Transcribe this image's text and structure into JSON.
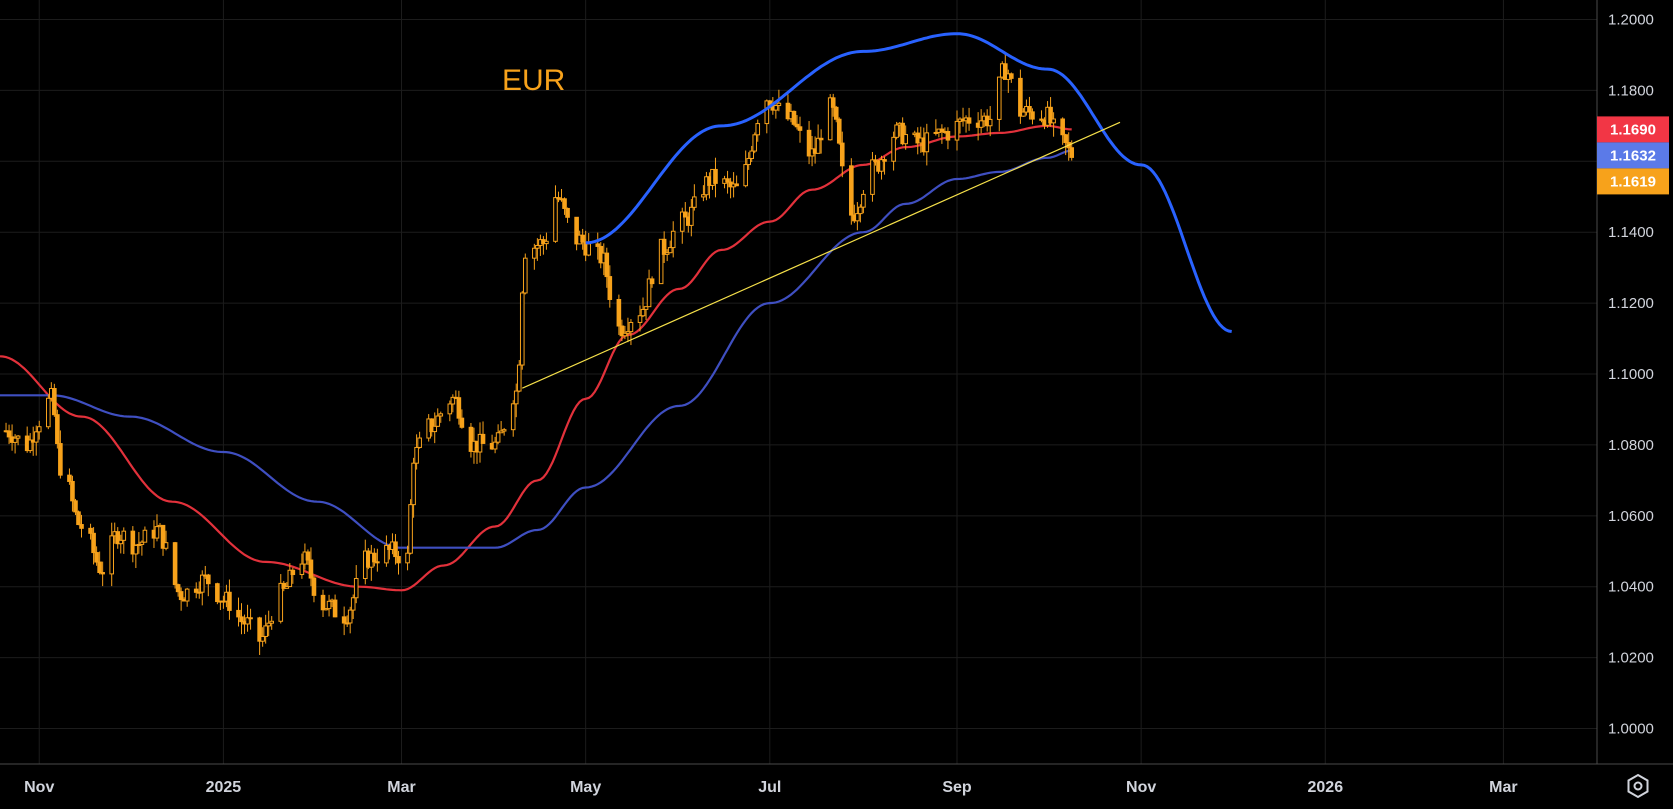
{
  "chart_data": {
    "type": "line",
    "title": "EUR",
    "y_ticks": [
      "1.2000",
      "1.1800",
      "1.1600",
      "1.1400",
      "1.1200",
      "1.1000",
      "1.0800",
      "1.0600",
      "1.0400",
      "1.0200",
      "1.0000"
    ],
    "ylim": [
      0.99,
      1.2055
    ],
    "y_scale": "linear",
    "grid": true,
    "x_ticks": [
      {
        "label": "Nov",
        "date": "2024-11-01"
      },
      {
        "label": "2025",
        "date": "2025-01-01"
      },
      {
        "label": "Mar",
        "date": "2025-03-01"
      },
      {
        "label": "May",
        "date": "2025-05-01"
      },
      {
        "label": "Jul",
        "date": "2025-07-01"
      },
      {
        "label": "Sep",
        "date": "2025-09-01"
      },
      {
        "label": "Nov",
        "date": "2025-11-01"
      },
      {
        "label": "2026",
        "date": "2026-01-01"
      },
      {
        "label": "Mar",
        "date": "2026-03-01"
      }
    ],
    "xlim": [
      "2024-10-19",
      "2026-04-01"
    ],
    "price_series": {
      "color": "#f7a21b",
      "style": "candlestick",
      "anchors": [
        [
          "2024-10-21",
          1.084
        ],
        [
          "2024-10-28",
          1.08
        ],
        [
          "2024-11-01",
          1.087
        ],
        [
          "2024-11-05",
          1.093
        ],
        [
          "2024-11-08",
          1.074
        ],
        [
          "2024-11-15",
          1.057
        ],
        [
          "2024-11-22",
          1.045
        ],
        [
          "2024-11-27",
          1.055
        ],
        [
          "2024-12-03",
          1.052
        ],
        [
          "2024-12-10",
          1.056
        ],
        [
          "2024-12-18",
          1.038
        ],
        [
          "2024-12-26",
          1.042
        ],
        [
          "2025-01-02",
          1.036
        ],
        [
          "2025-01-08",
          1.03
        ],
        [
          "2025-01-13",
          1.025
        ],
        [
          "2025-01-20",
          1.038
        ],
        [
          "2025-01-27",
          1.048
        ],
        [
          "2025-02-03",
          1.035
        ],
        [
          "2025-02-10",
          1.032
        ],
        [
          "2025-02-18",
          1.048
        ],
        [
          "2025-02-25",
          1.05
        ],
        [
          "2025-03-03",
          1.048
        ],
        [
          "2025-03-05",
          1.077
        ],
        [
          "2025-03-10",
          1.085
        ],
        [
          "2025-03-18",
          1.093
        ],
        [
          "2025-03-25",
          1.08
        ],
        [
          "2025-04-01",
          1.08
        ],
        [
          "2025-04-08",
          1.095
        ],
        [
          "2025-04-11",
          1.135
        ],
        [
          "2025-04-17",
          1.137
        ],
        [
          "2025-04-21",
          1.15
        ],
        [
          "2025-04-28",
          1.138
        ],
        [
          "2025-05-06",
          1.133
        ],
        [
          "2025-05-12",
          1.113
        ],
        [
          "2025-05-19",
          1.118
        ],
        [
          "2025-05-26",
          1.135
        ],
        [
          "2025-06-02",
          1.143
        ],
        [
          "2025-06-12",
          1.155
        ],
        [
          "2025-06-20",
          1.152
        ],
        [
          "2025-06-30",
          1.178
        ],
        [
          "2025-07-07",
          1.172
        ],
        [
          "2025-07-15",
          1.162
        ],
        [
          "2025-07-21",
          1.175
        ],
        [
          "2025-07-28",
          1.145
        ],
        [
          "2025-08-04",
          1.158
        ],
        [
          "2025-08-12",
          1.168
        ],
        [
          "2025-08-20",
          1.165
        ],
        [
          "2025-08-28",
          1.168
        ],
        [
          "2025-09-05",
          1.172
        ],
        [
          "2025-09-12",
          1.172
        ],
        [
          "2025-09-17",
          1.186
        ],
        [
          "2025-09-22",
          1.174
        ],
        [
          "2025-09-30",
          1.173
        ],
        [
          "2025-10-06",
          1.165
        ],
        [
          "2025-10-09",
          1.162
        ]
      ]
    },
    "series": [
      {
        "color": "#e2313b",
        "last_value": 1.169,
        "anchors": [
          [
            "2024-10-19",
            1.105
          ],
          [
            "2024-11-15",
            1.088
          ],
          [
            "2024-12-15",
            1.064
          ],
          [
            "2025-01-15",
            1.047
          ],
          [
            "2025-02-15",
            1.04
          ],
          [
            "2025-03-01",
            1.039
          ],
          [
            "2025-03-15",
            1.046
          ],
          [
            "2025-04-01",
            1.057
          ],
          [
            "2025-04-15",
            1.07
          ],
          [
            "2025-05-01",
            1.093
          ],
          [
            "2025-05-15",
            1.111
          ],
          [
            "2025-06-01",
            1.124
          ],
          [
            "2025-06-15",
            1.135
          ],
          [
            "2025-07-01",
            1.143
          ],
          [
            "2025-07-15",
            1.152
          ],
          [
            "2025-08-01",
            1.159
          ],
          [
            "2025-08-15",
            1.164
          ],
          [
            "2025-09-01",
            1.167
          ],
          [
            "2025-09-15",
            1.168
          ],
          [
            "2025-10-01",
            1.17
          ],
          [
            "2025-10-09",
            1.169
          ]
        ]
      },
      {
        "color": "#3f4fc1",
        "last_value": 1.1632,
        "anchors": [
          [
            "2024-10-19",
            1.094
          ],
          [
            "2024-11-05",
            1.094
          ],
          [
            "2024-12-01",
            1.088
          ],
          [
            "2025-01-01",
            1.078
          ],
          [
            "2025-02-01",
            1.064
          ],
          [
            "2025-03-01",
            1.051
          ],
          [
            "2025-04-01",
            1.051
          ],
          [
            "2025-04-15",
            1.056
          ],
          [
            "2025-05-01",
            1.068
          ],
          [
            "2025-06-01",
            1.091
          ],
          [
            "2025-07-01",
            1.12
          ],
          [
            "2025-08-01",
            1.14
          ],
          [
            "2025-08-15",
            1.148
          ],
          [
            "2025-09-01",
            1.155
          ],
          [
            "2025-09-15",
            1.157
          ],
          [
            "2025-10-01",
            1.161
          ],
          [
            "2025-10-09",
            1.163
          ]
        ]
      }
    ],
    "current_price": 1.1619,
    "badge_colors": [
      "#f23645",
      "#5b7ae8",
      "#f7a21b"
    ],
    "annotations": [
      {
        "type": "curve",
        "color": "#2962ff",
        "points": [
          [
            "2025-05-01",
            1.137
          ],
          [
            "2025-06-15",
            1.17
          ],
          [
            "2025-08-01",
            1.191
          ],
          [
            "2025-09-01",
            1.196
          ],
          [
            "2025-10-01",
            1.186
          ],
          [
            "2025-11-01",
            1.159
          ],
          [
            "2025-12-01",
            1.112
          ]
        ]
      },
      {
        "type": "trendline",
        "color": "#f5e04a",
        "points": [
          [
            "2025-04-10",
            1.096
          ],
          [
            "2025-10-25",
            1.171
          ]
        ]
      }
    ]
  },
  "settings_icon": "gear-icon"
}
